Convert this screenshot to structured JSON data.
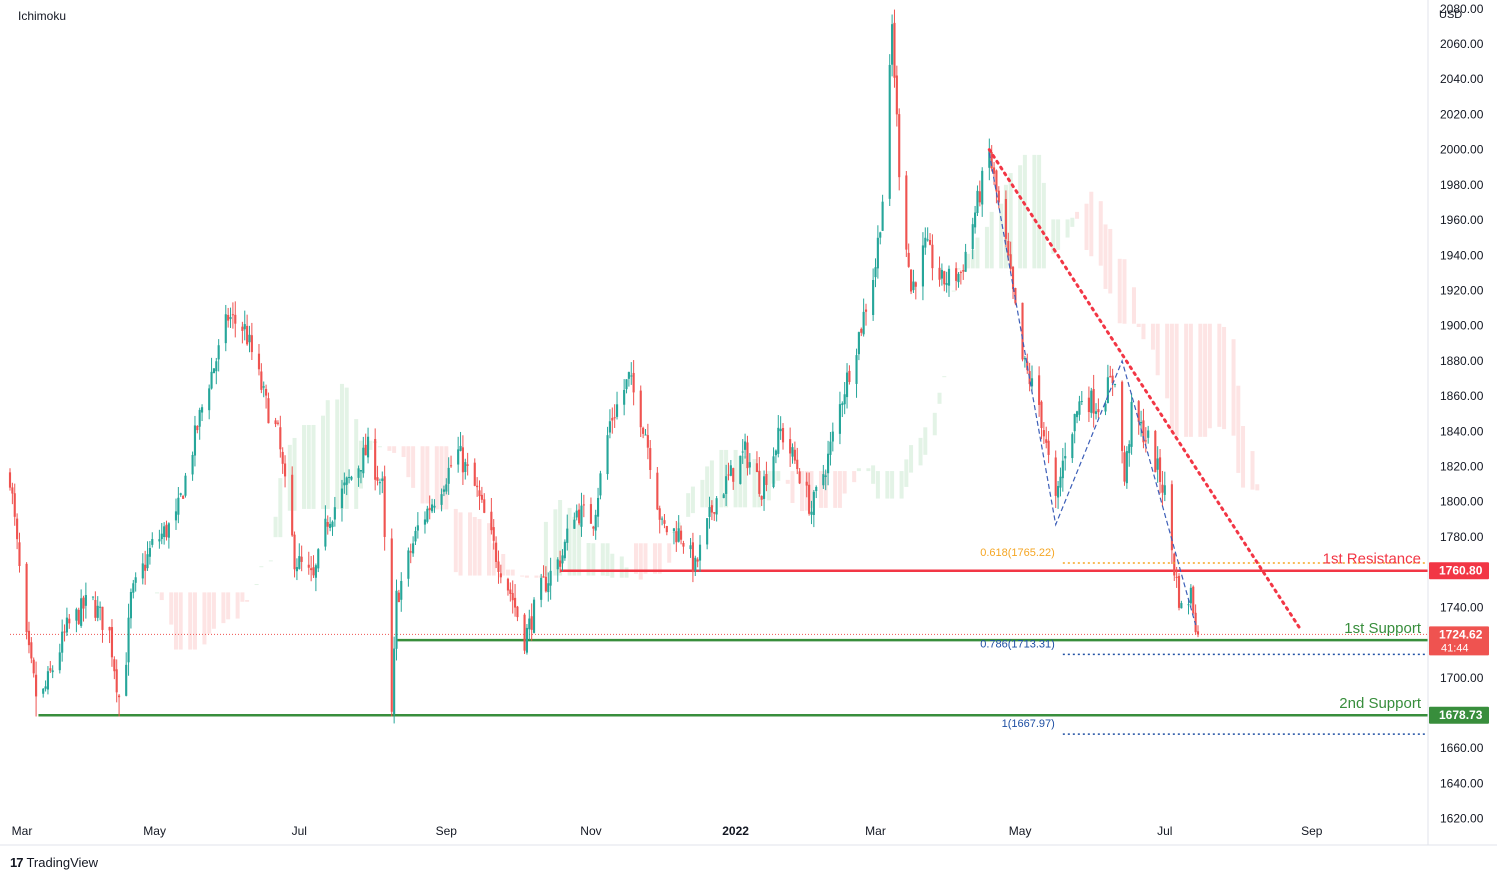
{
  "header": {
    "indicator_label": "Ichimoku",
    "currency_label": "USD"
  },
  "footer": {
    "brand_name": "TradingView",
    "logo_glyph": "17"
  },
  "colors": {
    "up": "#26a69a",
    "down": "#ef5350",
    "resistance": "#f23645",
    "support": "#388e3c",
    "fib_618": "#f5a623",
    "fib_blue": "#1e4fa3",
    "cloud_green": "#e3f3e6",
    "cloud_red": "#fde4e4"
  },
  "chart_data": {
    "type": "candlestick",
    "y_axis": {
      "ylim": [
        1605,
        2085
      ],
      "ticks": [
        1620,
        1640,
        1660,
        1680,
        1700,
        1720,
        1740,
        1760,
        1780,
        1800,
        1820,
        1840,
        1860,
        1880,
        1900,
        1920,
        1940,
        1960,
        1980,
        2000,
        2020,
        2040,
        2060,
        2080
      ],
      "tick_labels": [
        "1620.00",
        "1640.00",
        "1660.00",
        "1680.00",
        "1700.00",
        "1720.00",
        "1740.00",
        "1760.00",
        "1780.00",
        "1800.00",
        "1820.00",
        "1840.00",
        "1860.00",
        "1880.00",
        "1900.00",
        "1920.00",
        "1940.00",
        "1960.00",
        "1980.00",
        "2000.00",
        "2020.00",
        "2040.00",
        "2060.00",
        "2080.00"
      ]
    },
    "x_axis": {
      "xlim": [
        "2021-03-01",
        "2022-10-20"
      ],
      "ticks": [
        {
          "date": "2021-03-01",
          "label": "Mar"
        },
        {
          "date": "2021-05-01",
          "label": "May"
        },
        {
          "date": "2021-07-01",
          "label": "Jul"
        },
        {
          "date": "2021-09-01",
          "label": "Sep"
        },
        {
          "date": "2021-11-01",
          "label": "Nov"
        },
        {
          "date": "2022-01-01",
          "label": "2022"
        },
        {
          "date": "2022-03-01",
          "label": "Mar"
        },
        {
          "date": "2022-05-01",
          "label": "May"
        },
        {
          "date": "2022-07-01",
          "label": "Jul"
        },
        {
          "date": "2022-09-01",
          "label": "Sep"
        }
      ]
    },
    "price_path": [
      [
        "2021-03-01",
        1815
      ],
      [
        "2021-03-08",
        1720
      ],
      [
        "2021-03-13",
        1683
      ],
      [
        "2021-03-25",
        1728
      ],
      [
        "2021-04-04",
        1745
      ],
      [
        "2021-04-12",
        1725
      ],
      [
        "2021-04-17",
        1680
      ],
      [
        "2021-04-21",
        1745
      ],
      [
        "2021-04-30",
        1775
      ],
      [
        "2021-05-10",
        1790
      ],
      [
        "2021-05-16",
        1825
      ],
      [
        "2021-05-23",
        1865
      ],
      [
        "2021-05-28",
        1885
      ],
      [
        "2021-06-01",
        1905
      ],
      [
        "2021-06-08",
        1898
      ],
      [
        "2021-06-12",
        1880
      ],
      [
        "2021-06-17",
        1855
      ],
      [
        "2021-06-22",
        1838
      ],
      [
        "2021-06-29",
        1768
      ],
      [
        "2021-07-07",
        1755
      ],
      [
        "2021-07-13",
        1790
      ],
      [
        "2021-07-22",
        1812
      ],
      [
        "2021-07-30",
        1830
      ],
      [
        "2021-08-05",
        1808
      ],
      [
        "2021-08-09",
        1678
      ],
      [
        "2021-08-11",
        1745
      ],
      [
        "2021-08-20",
        1785
      ],
      [
        "2021-08-30",
        1810
      ],
      [
        "2021-09-06",
        1828
      ],
      [
        "2021-09-14",
        1805
      ],
      [
        "2021-09-22",
        1770
      ],
      [
        "2021-09-29",
        1745
      ],
      [
        "2021-10-04",
        1722
      ],
      [
        "2021-10-11",
        1750
      ],
      [
        "2021-10-20",
        1770
      ],
      [
        "2021-10-25",
        1795
      ],
      [
        "2021-11-02",
        1790
      ],
      [
        "2021-11-09",
        1845
      ],
      [
        "2021-11-17",
        1870
      ],
      [
        "2021-11-24",
        1840
      ],
      [
        "2021-12-01",
        1785
      ],
      [
        "2021-12-09",
        1782
      ],
      [
        "2021-12-15",
        1762
      ],
      [
        "2021-12-23",
        1800
      ],
      [
        "2021-12-30",
        1815
      ],
      [
        "2022-01-05",
        1828
      ],
      [
        "2022-01-12",
        1808
      ],
      [
        "2022-01-20",
        1840
      ],
      [
        "2022-01-27",
        1820
      ],
      [
        "2022-02-02",
        1795
      ],
      [
        "2022-02-09",
        1825
      ],
      [
        "2022-02-15",
        1860
      ],
      [
        "2022-02-23",
        1900
      ],
      [
        "2022-03-01",
        1935
      ],
      [
        "2022-03-05",
        1985
      ],
      [
        "2022-03-08",
        2070
      ],
      [
        "2022-03-11",
        1990
      ],
      [
        "2022-03-16",
        1920
      ],
      [
        "2022-03-22",
        1945
      ],
      [
        "2022-03-29",
        1925
      ],
      [
        "2022-04-06",
        1930
      ],
      [
        "2022-04-13",
        1970
      ],
      [
        "2022-04-18",
        1998
      ],
      [
        "2022-04-25",
        1945
      ],
      [
        "2022-05-02",
        1880
      ],
      [
        "2022-05-09",
        1855
      ],
      [
        "2022-05-16",
        1798
      ],
      [
        "2022-05-20",
        1830
      ],
      [
        "2022-05-27",
        1860
      ],
      [
        "2022-06-03",
        1855
      ],
      [
        "2022-06-10",
        1872
      ],
      [
        "2022-06-14",
        1812
      ],
      [
        "2022-06-17",
        1850
      ],
      [
        "2022-06-24",
        1835
      ],
      [
        "2022-07-01",
        1805
      ],
      [
        "2022-07-05",
        1762
      ],
      [
        "2022-07-08",
        1738
      ],
      [
        "2022-07-12",
        1748
      ],
      [
        "2022-07-15",
        1724.62
      ]
    ],
    "levels": [
      {
        "name": "1st Resistance",
        "value": 1760.8,
        "label": "1760.80",
        "start": "2021-10-19"
      },
      {
        "name": "1st Support",
        "value": 1721.41,
        "label": "1721.41",
        "start": "2021-08-11"
      },
      {
        "name": "2nd Support",
        "value": 1678.73,
        "label": "1678.73",
        "start": "2021-03-13"
      }
    ],
    "level_texts": {
      "res1": "1st Resistance",
      "sup1": "1st Support",
      "sup2": "2nd Support"
    },
    "fib_levels": [
      {
        "label": "0.618(1765.22)",
        "value": 1765.22
      },
      {
        "label": "0.786(1713.31)",
        "value": 1713.31
      },
      {
        "label": "1(1667.97)",
        "value": 1667.97
      }
    ],
    "fib_start": "2022-05-19",
    "trendline": {
      "from": [
        "2022-04-18",
        2000
      ],
      "to": [
        "2022-08-27",
        1728
      ]
    },
    "zigzag": [
      [
        "2022-04-18",
        1998
      ],
      [
        "2022-05-16",
        1787
      ],
      [
        "2022-06-13",
        1880
      ],
      [
        "2022-07-14",
        1730
      ]
    ],
    "current_price": {
      "value": 1724.62,
      "label": "1724.62",
      "countdown": "41:44"
    }
  }
}
